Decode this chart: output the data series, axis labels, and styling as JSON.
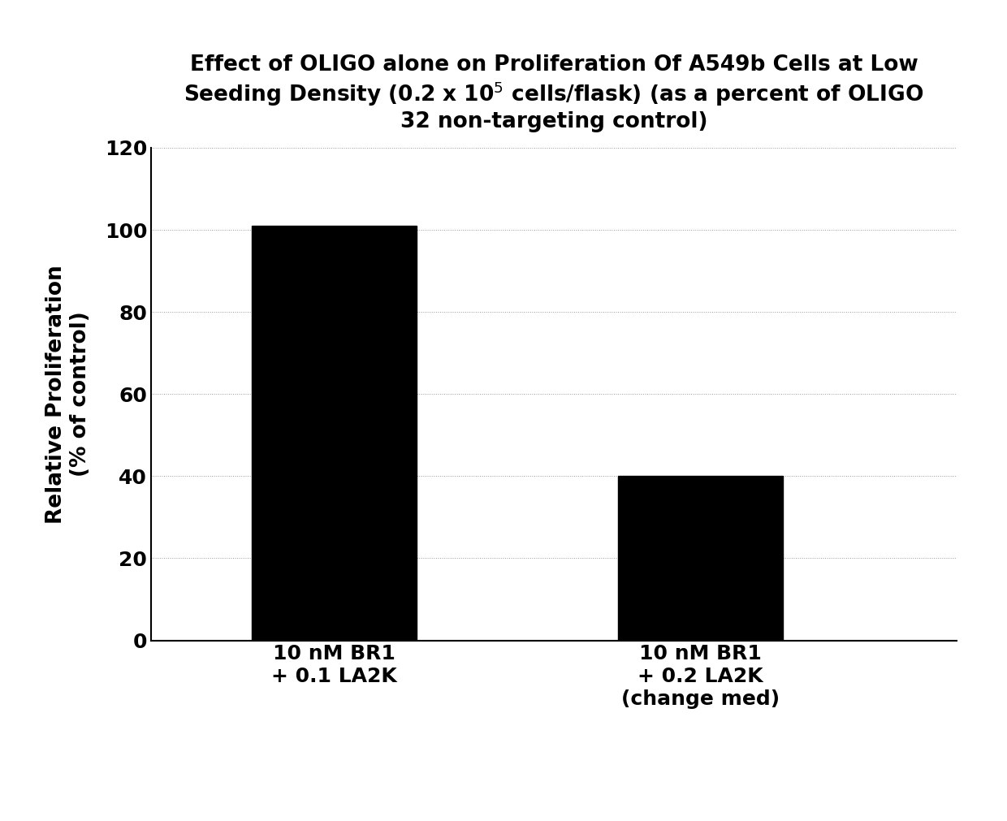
{
  "categories": [
    "10 nM BR1\n+ 0.1 LA2K",
    "10 nM BR1\n+ 0.2 LA2K\n(change med)"
  ],
  "values": [
    101,
    40
  ],
  "bar_color": "#000000",
  "ylabel": "Relative Proliferation\n(% of control)",
  "ylim": [
    0,
    120
  ],
  "yticks": [
    0,
    20,
    40,
    60,
    80,
    100,
    120
  ],
  "background_color": "#ffffff",
  "bar_width": 0.45,
  "title_fontsize": 19,
  "axis_fontsize": 19,
  "tick_fontsize": 18,
  "xlabel_fontsize": 18,
  "title_text": "Effect of OLIGO alone on Proliferation Of A549b Cells at Low\nSeeding Density (0.2 x 10$^5$ cells/flask) (as a percent of OLIGO\n32 non-targeting control)"
}
